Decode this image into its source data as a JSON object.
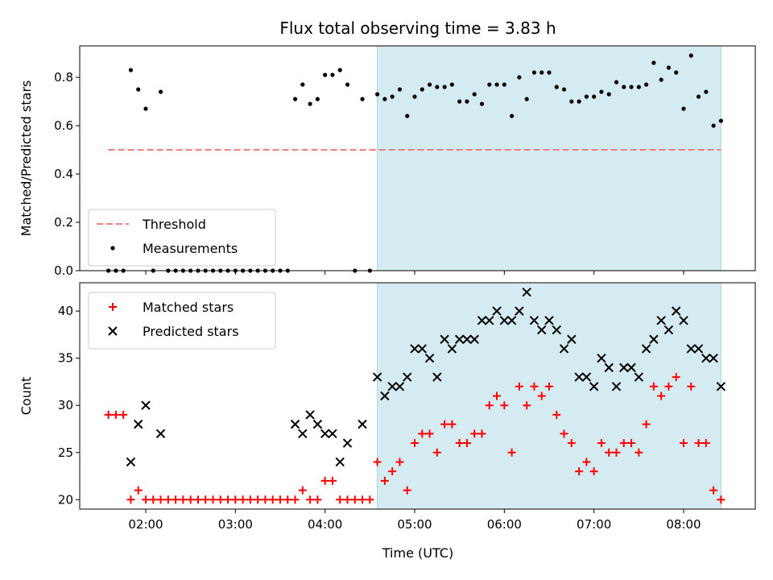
{
  "chart_data": {
    "title": "Flux total observing time = 3.83 h",
    "xlabel": "Time (UTC)",
    "x_ticks": [
      "02:00",
      "03:00",
      "04:00",
      "05:00",
      "06:00",
      "07:00",
      "08:00"
    ],
    "shaded_span": {
      "start": "04:35",
      "end": "08:25",
      "color": "#d4ebf1"
    },
    "panels": [
      {
        "id": "ratio",
        "type": "scatter",
        "ylabel": "Matched/Predicted stars",
        "ylim": [
          0,
          0.93
        ],
        "y_ticks": [
          0.0,
          0.2,
          0.4,
          0.6,
          0.8
        ],
        "y_tick_labels": [
          "0.0",
          "0.2",
          "0.4",
          "0.6",
          "0.8"
        ],
        "threshold": {
          "name": "Threshold",
          "value": 0.5,
          "x_start": "01:35",
          "x_end": "08:25",
          "color": "#f08080"
        },
        "series": [
          {
            "name": "Measurements",
            "marker": "dot",
            "color": "#000000",
            "points": [
              [
                "01:35",
                0.0
              ],
              [
                "01:40",
                0.0
              ],
              [
                "01:45",
                0.0
              ],
              [
                "01:50",
                0.83
              ],
              [
                "01:55",
                0.75
              ],
              [
                "02:00",
                0.67
              ],
              [
                "02:05",
                0.0
              ],
              [
                "02:10",
                0.74
              ],
              [
                "02:15",
                0.0
              ],
              [
                "02:20",
                0.0
              ],
              [
                "02:25",
                0.0
              ],
              [
                "02:30",
                0.0
              ],
              [
                "02:35",
                0.0
              ],
              [
                "02:40",
                0.0
              ],
              [
                "02:45",
                0.0
              ],
              [
                "02:50",
                0.0
              ],
              [
                "02:55",
                0.0
              ],
              [
                "03:00",
                0.0
              ],
              [
                "03:05",
                0.0
              ],
              [
                "03:10",
                0.0
              ],
              [
                "03:15",
                0.0
              ],
              [
                "03:20",
                0.0
              ],
              [
                "03:25",
                0.0
              ],
              [
                "03:30",
                0.0
              ],
              [
                "03:35",
                0.0
              ],
              [
                "03:40",
                0.71
              ],
              [
                "03:45",
                0.77
              ],
              [
                "03:50",
                0.69
              ],
              [
                "03:55",
                0.71
              ],
              [
                "04:00",
                0.81
              ],
              [
                "04:05",
                0.81
              ],
              [
                "04:10",
                0.83
              ],
              [
                "04:15",
                0.77
              ],
              [
                "04:20",
                0.0
              ],
              [
                "04:25",
                0.71
              ],
              [
                "04:30",
                0.0
              ],
              [
                "04:35",
                0.73
              ],
              [
                "04:40",
                0.71
              ],
              [
                "04:45",
                0.72
              ],
              [
                "04:50",
                0.75
              ],
              [
                "04:55",
                0.64
              ],
              [
                "05:00",
                0.72
              ],
              [
                "05:05",
                0.75
              ],
              [
                "05:10",
                0.77
              ],
              [
                "05:15",
                0.76
              ],
              [
                "05:20",
                0.76
              ],
              [
                "05:25",
                0.77
              ],
              [
                "05:30",
                0.7
              ],
              [
                "05:35",
                0.7
              ],
              [
                "05:40",
                0.73
              ],
              [
                "05:45",
                0.69
              ],
              [
                "05:50",
                0.77
              ],
              [
                "05:55",
                0.77
              ],
              [
                "06:00",
                0.77
              ],
              [
                "06:05",
                0.64
              ],
              [
                "06:10",
                0.8
              ],
              [
                "06:15",
                0.71
              ],
              [
                "06:20",
                0.82
              ],
              [
                "06:25",
                0.82
              ],
              [
                "06:30",
                0.82
              ],
              [
                "06:35",
                0.76
              ],
              [
                "06:40",
                0.75
              ],
              [
                "06:45",
                0.7
              ],
              [
                "06:50",
                0.7
              ],
              [
                "06:55",
                0.72
              ],
              [
                "07:00",
                0.72
              ],
              [
                "07:05",
                0.74
              ],
              [
                "07:10",
                0.73
              ],
              [
                "07:15",
                0.78
              ],
              [
                "07:20",
                0.76
              ],
              [
                "07:25",
                0.76
              ],
              [
                "07:30",
                0.76
              ],
              [
                "07:35",
                0.77
              ],
              [
                "07:40",
                0.86
              ],
              [
                "07:45",
                0.79
              ],
              [
                "07:50",
                0.84
              ],
              [
                "07:55",
                0.82
              ],
              [
                "08:00",
                0.67
              ],
              [
                "08:05",
                0.89
              ],
              [
                "08:10",
                0.72
              ],
              [
                "08:15",
                0.74
              ],
              [
                "08:20",
                0.6
              ],
              [
                "08:25",
                0.62
              ]
            ]
          }
        ]
      },
      {
        "id": "counts",
        "type": "scatter",
        "ylabel": "Count",
        "ylim": [
          19,
          43
        ],
        "y_ticks": [
          20,
          25,
          30,
          35,
          40
        ],
        "y_tick_labels": [
          "20",
          "25",
          "30",
          "35",
          "40"
        ],
        "series": [
          {
            "name": "Matched stars",
            "marker": "plus",
            "color": "#ff0000",
            "points": [
              [
                "01:35",
                29
              ],
              [
                "01:40",
                29
              ],
              [
                "01:45",
                29
              ],
              [
                "01:50",
                20
              ],
              [
                "01:55",
                21
              ],
              [
                "02:00",
                20
              ],
              [
                "02:05",
                20
              ],
              [
                "02:10",
                20
              ],
              [
                "02:15",
                20
              ],
              [
                "02:20",
                20
              ],
              [
                "02:25",
                20
              ],
              [
                "02:30",
                20
              ],
              [
                "02:35",
                20
              ],
              [
                "02:40",
                20
              ],
              [
                "02:45",
                20
              ],
              [
                "02:50",
                20
              ],
              [
                "02:55",
                20
              ],
              [
                "03:00",
                20
              ],
              [
                "03:05",
                20
              ],
              [
                "03:10",
                20
              ],
              [
                "03:15",
                20
              ],
              [
                "03:20",
                20
              ],
              [
                "03:25",
                20
              ],
              [
                "03:30",
                20
              ],
              [
                "03:35",
                20
              ],
              [
                "03:40",
                20
              ],
              [
                "03:45",
                21
              ],
              [
                "03:50",
                20
              ],
              [
                "03:55",
                20
              ],
              [
                "04:00",
                22
              ],
              [
                "04:05",
                22
              ],
              [
                "04:10",
                20
              ],
              [
                "04:15",
                20
              ],
              [
                "04:20",
                20
              ],
              [
                "04:25",
                20
              ],
              [
                "04:30",
                20
              ],
              [
                "04:35",
                24
              ],
              [
                "04:40",
                22
              ],
              [
                "04:45",
                23
              ],
              [
                "04:50",
                24
              ],
              [
                "04:55",
                21
              ],
              [
                "05:00",
                26
              ],
              [
                "05:05",
                27
              ],
              [
                "05:10",
                27
              ],
              [
                "05:15",
                25
              ],
              [
                "05:20",
                28
              ],
              [
                "05:25",
                28
              ],
              [
                "05:30",
                26
              ],
              [
                "05:35",
                26
              ],
              [
                "05:40",
                27
              ],
              [
                "05:45",
                27
              ],
              [
                "05:50",
                30
              ],
              [
                "05:55",
                31
              ],
              [
                "06:00",
                30
              ],
              [
                "06:05",
                25
              ],
              [
                "06:10",
                32
              ],
              [
                "06:15",
                30
              ],
              [
                "06:20",
                32
              ],
              [
                "06:25",
                31
              ],
              [
                "06:30",
                32
              ],
              [
                "06:35",
                29
              ],
              [
                "06:40",
                27
              ],
              [
                "06:45",
                26
              ],
              [
                "06:50",
                23
              ],
              [
                "06:55",
                24
              ],
              [
                "07:00",
                23
              ],
              [
                "07:05",
                26
              ],
              [
                "07:10",
                25
              ],
              [
                "07:15",
                25
              ],
              [
                "07:20",
                26
              ],
              [
                "07:25",
                26
              ],
              [
                "07:30",
                25
              ],
              [
                "07:35",
                28
              ],
              [
                "07:40",
                32
              ],
              [
                "07:45",
                31
              ],
              [
                "07:50",
                32
              ],
              [
                "07:55",
                33
              ],
              [
                "08:00",
                26
              ],
              [
                "08:05",
                32
              ],
              [
                "08:10",
                26
              ],
              [
                "08:15",
                26
              ],
              [
                "08:20",
                21
              ],
              [
                "08:25",
                20
              ]
            ]
          },
          {
            "name": "Predicted stars",
            "marker": "x",
            "color": "#000000",
            "points": [
              [
                "01:50",
                24
              ],
              [
                "01:55",
                28
              ],
              [
                "02:00",
                30
              ],
              [
                "02:10",
                27
              ],
              [
                "03:40",
                28
              ],
              [
                "03:45",
                27
              ],
              [
                "03:50",
                29
              ],
              [
                "03:55",
                28
              ],
              [
                "04:00",
                27
              ],
              [
                "04:05",
                27
              ],
              [
                "04:10",
                24
              ],
              [
                "04:15",
                26
              ],
              [
                "04:25",
                28
              ],
              [
                "04:35",
                33
              ],
              [
                "04:40",
                31
              ],
              [
                "04:45",
                32
              ],
              [
                "04:50",
                32
              ],
              [
                "04:55",
                33
              ],
              [
                "05:00",
                36
              ],
              [
                "05:05",
                36
              ],
              [
                "05:10",
                35
              ],
              [
                "05:15",
                33
              ],
              [
                "05:20",
                37
              ],
              [
                "05:25",
                36
              ],
              [
                "05:30",
                37
              ],
              [
                "05:35",
                37
              ],
              [
                "05:40",
                37
              ],
              [
                "05:45",
                39
              ],
              [
                "05:50",
                39
              ],
              [
                "05:55",
                40
              ],
              [
                "06:00",
                39
              ],
              [
                "06:05",
                39
              ],
              [
                "06:10",
                40
              ],
              [
                "06:15",
                42
              ],
              [
                "06:20",
                39
              ],
              [
                "06:25",
                38
              ],
              [
                "06:30",
                39
              ],
              [
                "06:35",
                38
              ],
              [
                "06:40",
                36
              ],
              [
                "06:45",
                37
              ],
              [
                "06:50",
                33
              ],
              [
                "06:55",
                33
              ],
              [
                "07:00",
                32
              ],
              [
                "07:05",
                35
              ],
              [
                "07:10",
                34
              ],
              [
                "07:15",
                32
              ],
              [
                "07:20",
                34
              ],
              [
                "07:25",
                34
              ],
              [
                "07:30",
                33
              ],
              [
                "07:35",
                36
              ],
              [
                "07:40",
                37
              ],
              [
                "07:45",
                39
              ],
              [
                "07:50",
                38
              ],
              [
                "07:55",
                40
              ],
              [
                "08:00",
                39
              ],
              [
                "08:05",
                36
              ],
              [
                "08:10",
                36
              ],
              [
                "08:15",
                35
              ],
              [
                "08:20",
                35
              ],
              [
                "08:25",
                32
              ]
            ]
          }
        ]
      }
    ]
  }
}
